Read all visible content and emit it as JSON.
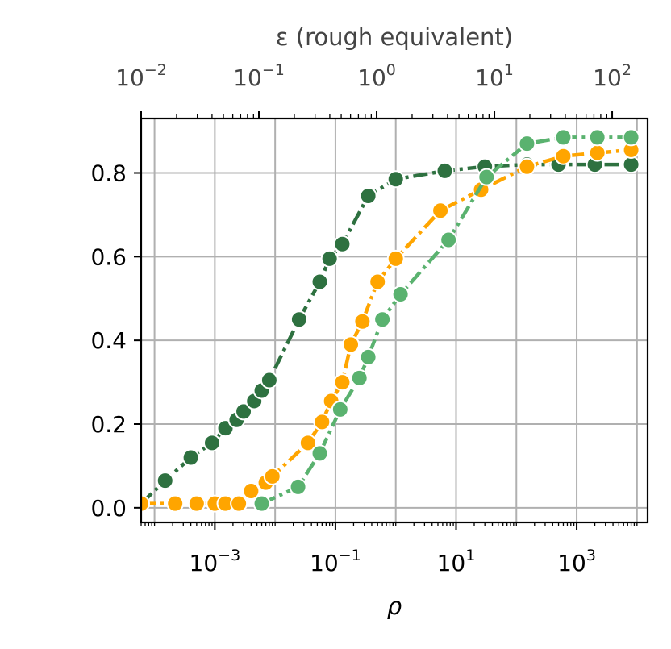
{
  "chart_data": {
    "type": "line",
    "xlabel": "ρ",
    "ylabel": "",
    "top_xlabel": "ε (rough equivalent)",
    "x_scale": "log",
    "xlim": [
      6e-05,
      15000
    ],
    "ylim": [
      -0.035,
      0.93
    ],
    "top_xlim": [
      0.01,
      200
    ],
    "grid": true,
    "legend": "none",
    "x_ticks": [
      {
        "value": 0.001,
        "base": "10",
        "exp": "−3"
      },
      {
        "value": 0.1,
        "base": "10",
        "exp": "−1"
      },
      {
        "value": 10,
        "base": "10",
        "exp": "1"
      },
      {
        "value": 1000,
        "base": "10",
        "exp": "3"
      }
    ],
    "top_ticks": [
      {
        "value": 0.01,
        "base": "10",
        "exp": "−2"
      },
      {
        "value": 0.1,
        "base": "10",
        "exp": "−1"
      },
      {
        "value": 1,
        "base": "10",
        "exp": "0"
      },
      {
        "value": 10,
        "base": "10",
        "exp": "1"
      },
      {
        "value": 100,
        "base": "10",
        "exp": "2"
      }
    ],
    "y_ticks": [
      "0.0",
      "0.2",
      "0.4",
      "0.6",
      "0.8"
    ],
    "series": [
      {
        "color": "#2e7140",
        "dash": "dashdot",
        "points": [
          [
            6e-05,
            0.01
          ],
          [
            0.00015,
            0.065
          ],
          [
            0.0004,
            0.12
          ],
          [
            0.0009,
            0.155
          ],
          [
            0.0015,
            0.19
          ],
          [
            0.0023,
            0.21
          ],
          [
            0.003,
            0.23
          ],
          [
            0.0045,
            0.255
          ],
          [
            0.006,
            0.28
          ],
          [
            0.008,
            0.305
          ],
          [
            0.025,
            0.45
          ],
          [
            0.055,
            0.54
          ],
          [
            0.08,
            0.595
          ],
          [
            0.13,
            0.63
          ],
          [
            0.35,
            0.745
          ],
          [
            1.0,
            0.785
          ],
          [
            6.5,
            0.805
          ],
          [
            30,
            0.815
          ],
          [
            150,
            0.82
          ],
          [
            500,
            0.82
          ],
          [
            2000,
            0.82
          ],
          [
            8000,
            0.82
          ]
        ]
      },
      {
        "color": "#ffa500",
        "dash": "dashdot",
        "points": [
          [
            6e-05,
            0.01
          ],
          [
            0.00022,
            0.01
          ],
          [
            0.0005,
            0.01
          ],
          [
            0.001,
            0.01
          ],
          [
            0.0015,
            0.01
          ],
          [
            0.0025,
            0.01
          ],
          [
            0.004,
            0.04
          ],
          [
            0.007,
            0.06
          ],
          [
            0.009,
            0.075
          ],
          [
            0.035,
            0.155
          ],
          [
            0.06,
            0.205
          ],
          [
            0.085,
            0.255
          ],
          [
            0.13,
            0.3
          ],
          [
            0.18,
            0.39
          ],
          [
            0.28,
            0.445
          ],
          [
            0.5,
            0.54
          ],
          [
            1.0,
            0.595
          ],
          [
            5.5,
            0.71
          ],
          [
            26,
            0.76
          ],
          [
            150,
            0.815
          ],
          [
            600,
            0.84
          ],
          [
            2200,
            0.848
          ],
          [
            8000,
            0.855
          ]
        ]
      },
      {
        "color": "#5ab26f",
        "dash": "dashdot",
        "points": [
          [
            0.006,
            0.01
          ],
          [
            0.024,
            0.05
          ],
          [
            0.055,
            0.13
          ],
          [
            0.12,
            0.235
          ],
          [
            0.25,
            0.31
          ],
          [
            0.35,
            0.36
          ],
          [
            0.6,
            0.45
          ],
          [
            1.2,
            0.51
          ],
          [
            7.5,
            0.64
          ],
          [
            32,
            0.79
          ],
          [
            150,
            0.87
          ],
          [
            600,
            0.885
          ],
          [
            2200,
            0.885
          ],
          [
            8000,
            0.885
          ]
        ]
      }
    ]
  }
}
